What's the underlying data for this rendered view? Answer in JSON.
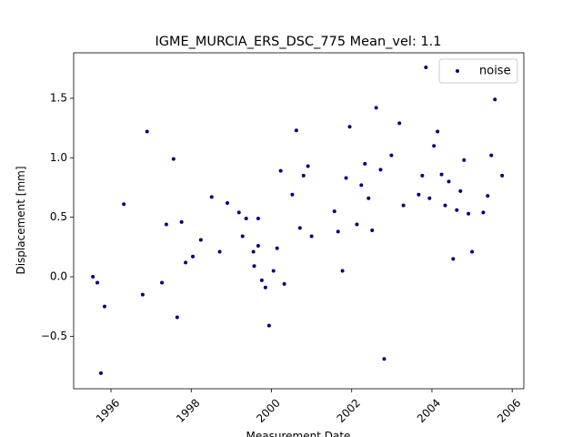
{
  "chart_data": {
    "type": "scatter",
    "title": "IGME_MURCIA_ERS_DSC_775    Mean_vel: 1.1",
    "x_label": "Measurement Date",
    "y_label": "Displacement [mm]",
    "xlim": [
      1995.07,
      2006.29
    ],
    "ylim": [
      -0.941,
      1.882
    ],
    "xticks": [
      1996,
      1998,
      2000,
      2002,
      2004,
      2006
    ],
    "yticks": [
      {
        "value": -0.5,
        "label": "−0.5"
      },
      {
        "value": 0.0,
        "label": "0.0"
      },
      0.5,
      {
        "value": 1.0,
        "label": "1.0"
      },
      1.5
    ],
    "legend": "upper right",
    "series": [
      {
        "name": "noise",
        "color": "#000080",
        "x": [
          1995.55,
          1995.66,
          1995.84,
          1995.75,
          1996.32,
          1996.79,
          1996.9,
          1997.27,
          1997.38,
          1997.56,
          1997.65,
          1997.76,
          1997.86,
          1998.04,
          1998.24,
          1998.51,
          1998.71,
          1998.9,
          1999.19,
          1999.28,
          1999.37,
          1999.55,
          1999.57,
          1999.67,
          1999.67,
          1999.76,
          1999.85,
          1999.94,
          2000.05,
          2000.14,
          2000.23,
          2000.32,
          2000.52,
          2000.62,
          2000.71,
          2000.8,
          2000.91,
          2001.0,
          2001.57,
          2001.66,
          2001.77,
          2001.86,
          2001.95,
          2002.13,
          2002.24,
          2002.33,
          2002.42,
          2002.51,
          2002.61,
          2002.72,
          2002.81,
          2002.99,
          2003.19,
          2003.29,
          2003.67,
          2003.76,
          2003.85,
          2003.94,
          2004.05,
          2004.14,
          2004.24,
          2004.33,
          2004.42,
          2004.53,
          2004.62,
          2004.71,
          2004.8,
          2004.91,
          2005.0,
          2005.28,
          2005.39,
          2005.48,
          2005.57,
          2005.75
        ],
        "values": [
          0.0,
          -0.05,
          -0.25,
          -0.81,
          0.61,
          -0.15,
          1.22,
          -0.05,
          0.44,
          0.99,
          -0.34,
          0.46,
          0.12,
          0.17,
          0.31,
          0.67,
          0.21,
          0.62,
          0.54,
          0.34,
          0.49,
          0.21,
          0.09,
          0.49,
          0.26,
          -0.03,
          -0.09,
          -0.41,
          0.05,
          0.24,
          0.89,
          -0.06,
          0.69,
          1.23,
          0.41,
          0.85,
          0.93,
          0.34,
          0.55,
          0.38,
          0.05,
          0.83,
          1.26,
          0.44,
          0.77,
          0.95,
          0.66,
          0.39,
          1.42,
          0.9,
          -0.69,
          1.02,
          1.29,
          0.6,
          0.69,
          0.85,
          1.76,
          0.66,
          1.1,
          1.22,
          0.86,
          0.6,
          0.8,
          0.15,
          0.56,
          0.72,
          0.98,
          0.53,
          0.21,
          0.54,
          0.68,
          1.02,
          1.49,
          0.85
        ]
      }
    ]
  }
}
